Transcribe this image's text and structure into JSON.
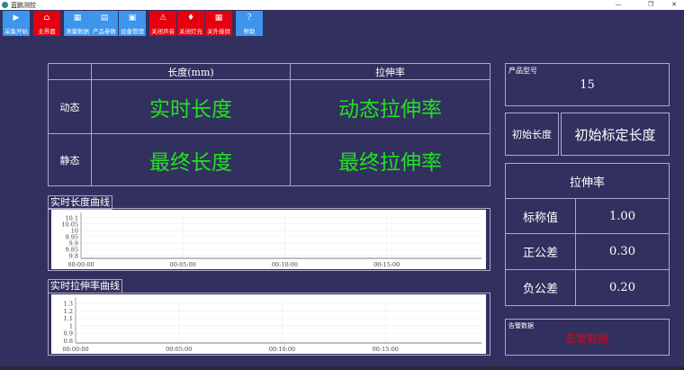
{
  "window": {
    "title": "蓝鹏测控",
    "minimize": "—",
    "maximize": "❐",
    "close": "✕"
  },
  "toolbar": [
    {
      "label": "采集开始",
      "icon": "play-icon",
      "glyph": "▶",
      "color": "blue"
    },
    {
      "label": "主界面",
      "icon": "home-icon",
      "glyph": "⌂",
      "color": "red"
    },
    {
      "label": "测量数据",
      "icon": "data-icon",
      "glyph": "▦",
      "color": "blue"
    },
    {
      "label": "产品参数",
      "icon": "params-icon",
      "glyph": "▤",
      "color": "blue"
    },
    {
      "label": "设备管理",
      "icon": "device-icon",
      "glyph": "▣",
      "color": "blue"
    },
    {
      "label": "关闭声音",
      "icon": "alarm-icon",
      "glyph": "⚠",
      "color": "red"
    },
    {
      "label": "关闭灯光",
      "icon": "light-icon",
      "glyph": "♦",
      "color": "red"
    },
    {
      "label": "关外接屏",
      "icon": "screen-icon",
      "glyph": "▦",
      "color": "red"
    },
    {
      "label": "帮助",
      "icon": "help-icon",
      "glyph": "?",
      "color": "blue"
    }
  ],
  "main_table": {
    "col_length": "长度(mm)",
    "col_stretch": "拉伸率",
    "row_dynamic": "动态",
    "row_static": "静态",
    "dynamic_length": "实时长度",
    "dynamic_stretch": "动态拉伸率",
    "static_length": "最终长度",
    "static_stretch": "最终拉伸率"
  },
  "chart_data": [
    {
      "type": "line",
      "title": "实时长度曲线",
      "y_ticks": [
        "10.1",
        "10.05",
        "10",
        "9.95",
        "9.9",
        "9.85",
        "9.8"
      ],
      "ylim": [
        9.78,
        10.12
      ],
      "x_ticks": [
        "00:00:00",
        "00:05:00",
        "00:10:00",
        "00:15:00"
      ],
      "grid": true,
      "series": []
    },
    {
      "type": "line",
      "title": "实时拉伸率曲线",
      "y_ticks": [
        "1.3",
        "1.2",
        "1.1",
        "1",
        "0.9",
        "0.8"
      ],
      "ylim": [
        0.77,
        1.35
      ],
      "x_ticks": [
        "00:00:00",
        "00:05:00",
        "00:10:00",
        "00:15:00"
      ],
      "grid": true,
      "series": []
    }
  ],
  "product": {
    "label": "产品型号",
    "value": "15"
  },
  "initial": {
    "label": "初始长度",
    "value": "初始标定长度"
  },
  "stretch": {
    "title": "拉伸率",
    "nominal_label": "标称值",
    "nominal": "1.00",
    "plus_label": "正公差",
    "plus": "0.30",
    "minus_label": "负公差",
    "minus": "0.20"
  },
  "alarm": {
    "label": "告警数据",
    "value": "告警数据",
    "color": "#e5000f"
  }
}
